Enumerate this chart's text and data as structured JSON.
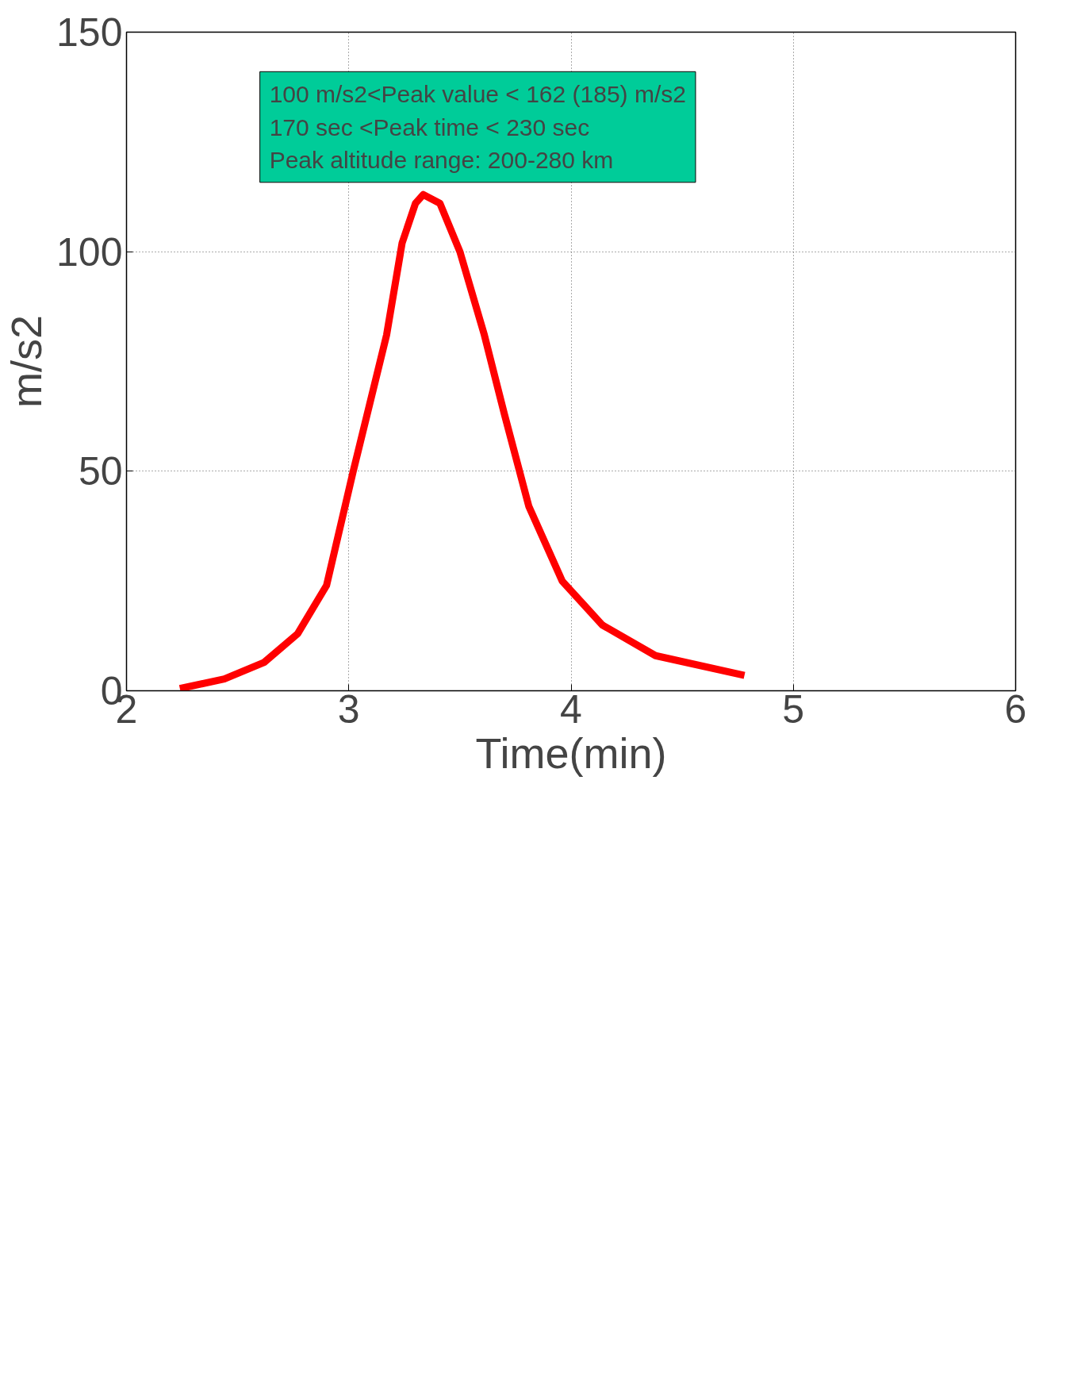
{
  "chart_data": {
    "type": "line",
    "xlabel": "Time(min)",
    "ylabel": "m/s2",
    "x": [
      2.24,
      2.44,
      2.62,
      2.77,
      2.9,
      3.02,
      3.17,
      3.24,
      3.3,
      3.335,
      3.41,
      3.5,
      3.61,
      3.7,
      3.81,
      3.96,
      4.14,
      4.38,
      4.78
    ],
    "series": [
      {
        "color": "#ff0000",
        "values": [
          0.5,
          2.7,
          6.5,
          13,
          24,
          50,
          81,
          102,
          111,
          113,
          111,
          100,
          81,
          63,
          42,
          25,
          15,
          8,
          3.5
        ]
      }
    ],
    "xlim": [
      2,
      6
    ],
    "ylim": [
      0,
      150
    ],
    "xticks": [
      2,
      3,
      4,
      5,
      6
    ],
    "yticks": [
      0,
      50,
      100,
      150
    ],
    "annotations": [
      "100 m/s2<Peak value < 162 (185) m/s2\n170 sec  <Peak time < 230 sec\nPeak altitude range: 200-280 km"
    ],
    "grid": true,
    "line_style": "solid"
  }
}
